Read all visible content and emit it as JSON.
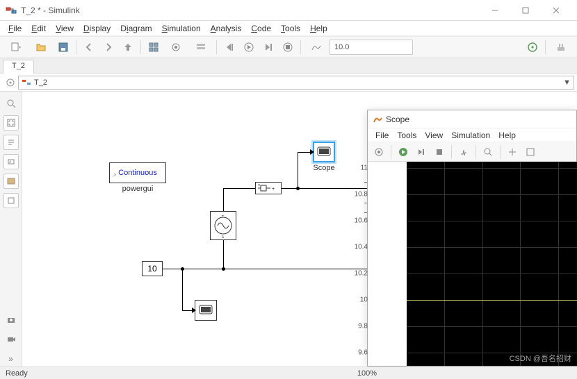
{
  "window": {
    "title": "T_2 * - Simulink",
    "accent_color": "#0076a8"
  },
  "menu": {
    "items": [
      "File",
      "Edit",
      "View",
      "Display",
      "Diagram",
      "Simulation",
      "Analysis",
      "Code",
      "Tools",
      "Help"
    ]
  },
  "toolbar": {
    "sim_time": "10.0"
  },
  "tabstrip": {
    "tabs": [
      "T_2"
    ]
  },
  "breadcrumb": {
    "path": "T_2"
  },
  "canvas": {
    "background": "#ffffff",
    "blocks": {
      "powergui": {
        "label_top": "Continuous",
        "label_bottom": "powergui",
        "text_color": "#1020d0"
      },
      "constant": {
        "value": "10"
      },
      "sine": {
        "type": "controlled-ac-source"
      },
      "mux": {
        "type": "measurement"
      },
      "scope": {
        "label": "Scope",
        "selected": true,
        "highlight": "#3aa0e8"
      },
      "scope2": {
        "label": ""
      }
    }
  },
  "scope": {
    "title": "Scope",
    "menu": [
      "File",
      "Tools",
      "View",
      "Simulation",
      "Help"
    ],
    "plot": {
      "bg": "#000000",
      "grid_color": "#333333",
      "trace_color": "#cccc66",
      "y_ticks": [
        11,
        10.8,
        10.6,
        10.4,
        10.2,
        10,
        9.8,
        9.6
      ],
      "y_min": 9.5,
      "y_max": 11.05,
      "trace_value": 10,
      "x_divisions": 5,
      "y_divisions": 8
    }
  },
  "statusbar": {
    "left": "Ready",
    "zoom": "100%"
  },
  "watermark": "CSDN @吾名招财"
}
